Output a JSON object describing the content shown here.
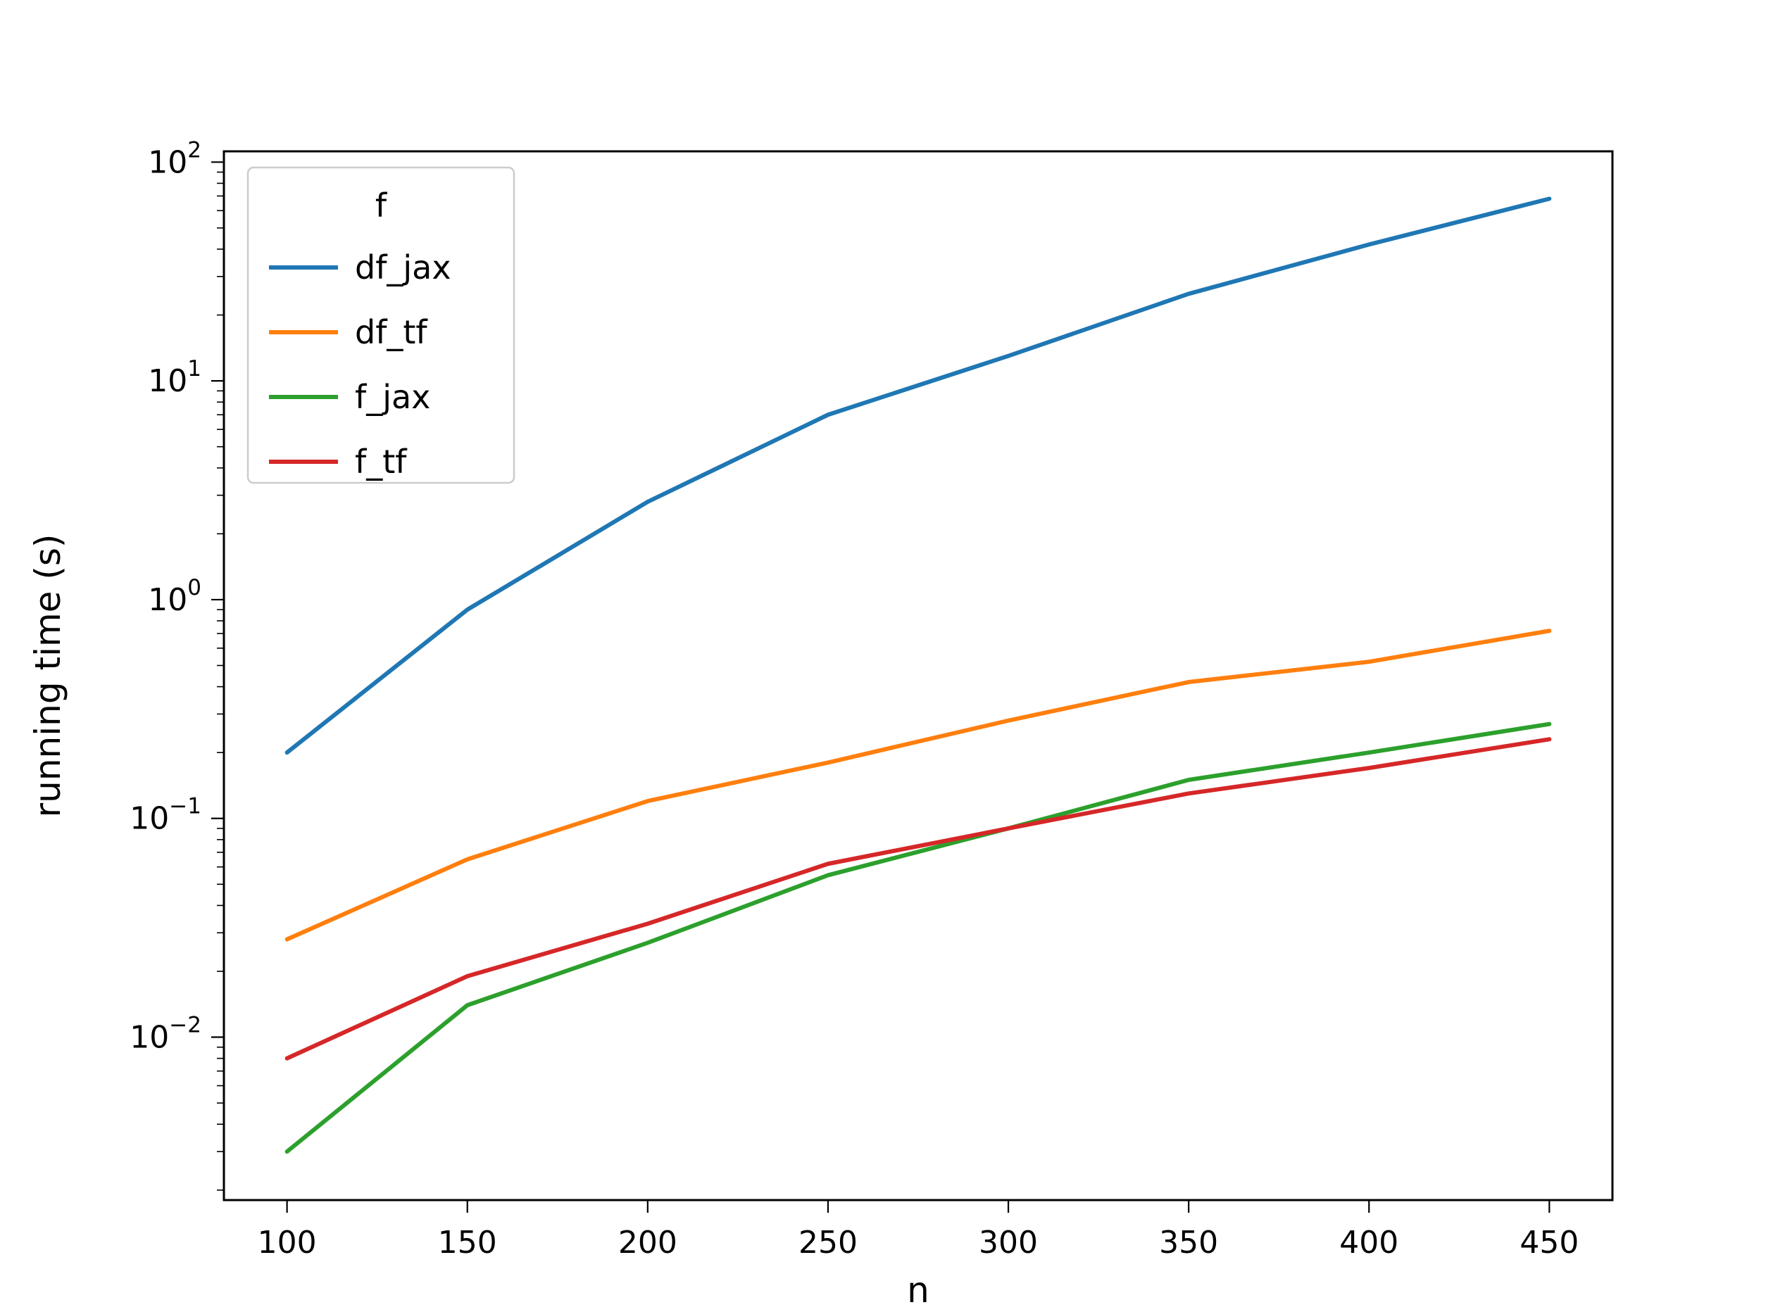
{
  "figure": {
    "background": "#ffffff"
  },
  "chart_data": {
    "type": "line",
    "title": "",
    "xlabel": "n",
    "ylabel": "running time (s)",
    "yscale": "log",
    "xscale": "linear",
    "grid": false,
    "xlim": [
      82.5,
      467.5
    ],
    "ylim": [
      0.0018,
      112
    ],
    "legend": {
      "title": "f",
      "position": "upper left"
    },
    "x": [
      100,
      150,
      200,
      250,
      300,
      350,
      400,
      450
    ],
    "x_ticks": [
      100,
      150,
      200,
      250,
      300,
      350,
      400,
      450
    ],
    "y_ticks": [
      {
        "value": 100,
        "exp": "2"
      },
      {
        "value": 10,
        "exp": "1"
      },
      {
        "value": 1,
        "exp": "0"
      },
      {
        "value": 0.1,
        "exp": "−1"
      },
      {
        "value": 0.01,
        "exp": "−2"
      }
    ],
    "series": [
      {
        "name": "df_jax",
        "color": "#1f77b4",
        "values": [
          0.2,
          0.9,
          2.8,
          7.0,
          13.0,
          25.0,
          42.0,
          68.0
        ]
      },
      {
        "name": "df_tf",
        "color": "#ff7f0e",
        "values": [
          0.028,
          0.065,
          0.12,
          0.18,
          0.28,
          0.42,
          0.52,
          0.72
        ]
      },
      {
        "name": "f_jax",
        "color": "#2ca02c",
        "values": [
          0.003,
          0.014,
          0.027,
          0.055,
          0.09,
          0.15,
          0.2,
          0.27
        ]
      },
      {
        "name": "f_tf",
        "color": "#d62728",
        "values": [
          0.008,
          0.019,
          0.033,
          0.062,
          0.09,
          0.13,
          0.17,
          0.23
        ]
      }
    ]
  }
}
